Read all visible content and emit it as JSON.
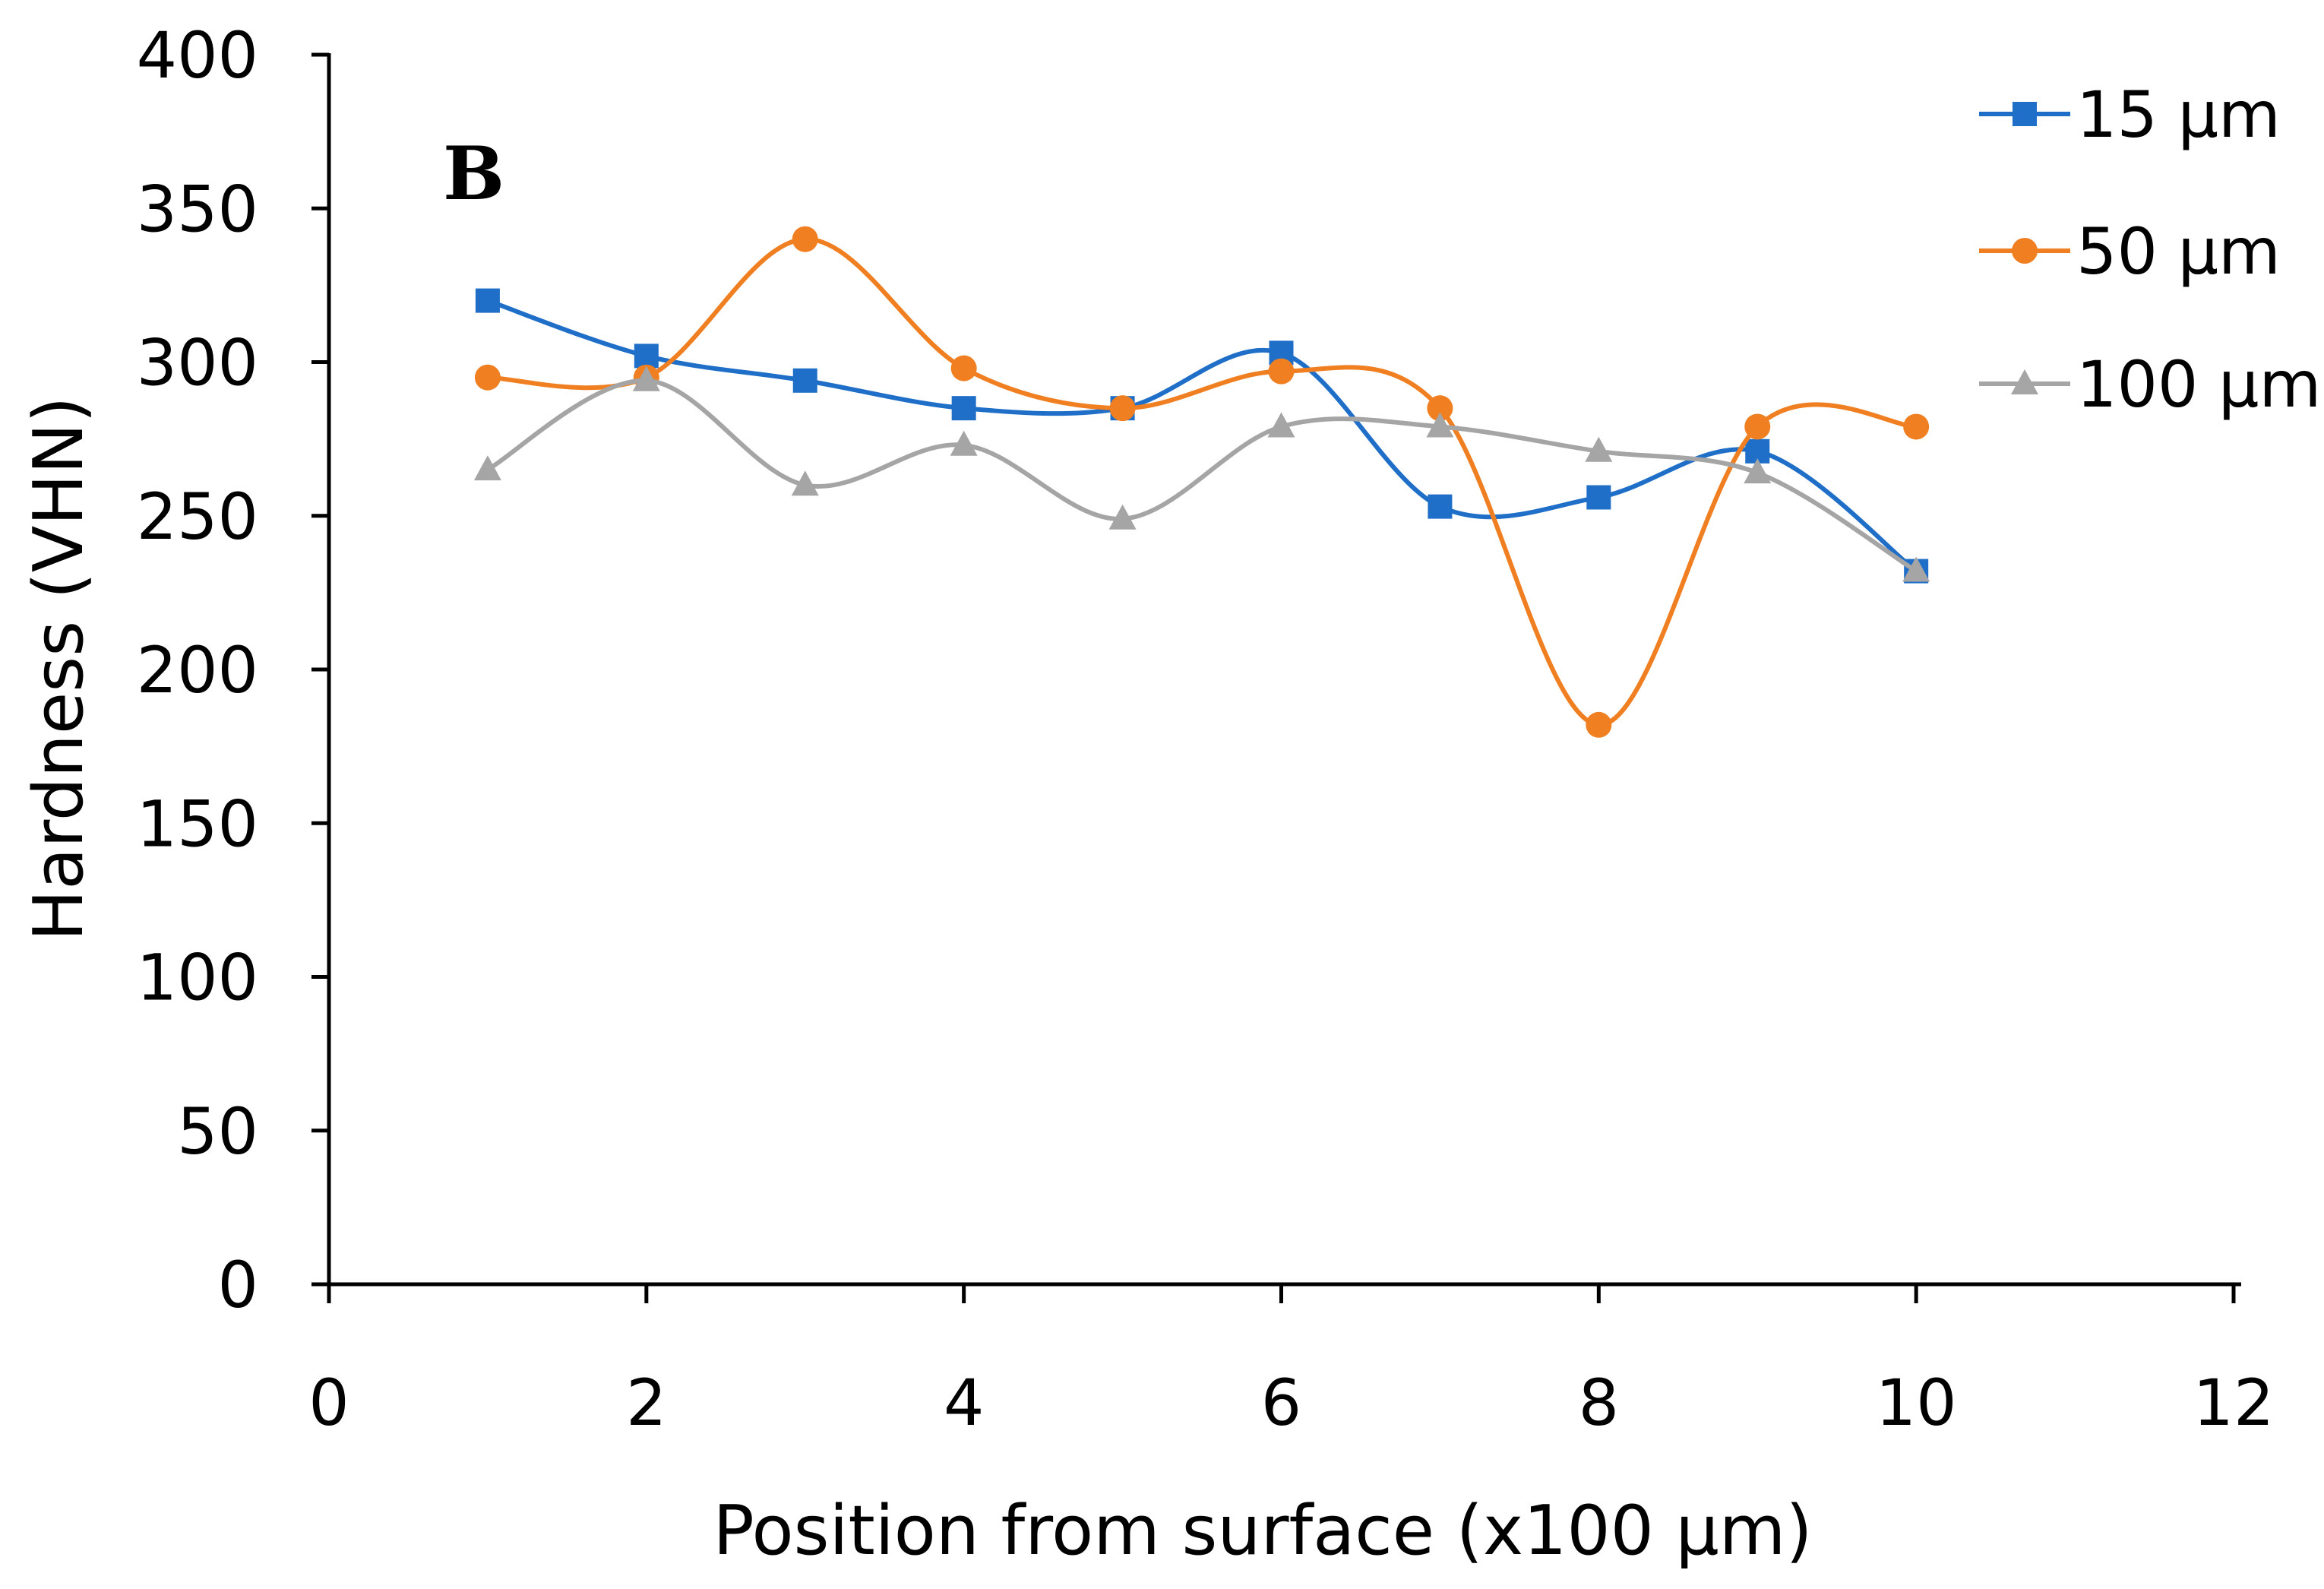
{
  "chart_data": {
    "type": "line",
    "panel_label": "B",
    "xlabel": "Position from surface (x100 µm)",
    "ylabel": "Hardness (VHN)",
    "xlim": [
      0,
      12
    ],
    "ylim": [
      0,
      400
    ],
    "xticks": [
      0,
      2,
      4,
      6,
      8,
      10,
      12
    ],
    "yticks": [
      0,
      50,
      100,
      150,
      200,
      250,
      300,
      350,
      400
    ],
    "grid": false,
    "legend_position": "top-right",
    "x": [
      1,
      2,
      3,
      4,
      5,
      6,
      7,
      8,
      9,
      10
    ],
    "series": [
      {
        "name": "15 µm",
        "color": "#1F6FC8",
        "marker": "square",
        "values": [
          320,
          302,
          294,
          285,
          285,
          303,
          253,
          256,
          271,
          232
        ]
      },
      {
        "name": "50 µm",
        "color": "#F07F22",
        "marker": "circle",
        "values": [
          295,
          295,
          340,
          298,
          285,
          297,
          285,
          182,
          279,
          279
        ]
      },
      {
        "name": "100 µm",
        "color": "#A5A5A5",
        "marker": "triangle",
        "values": [
          265,
          294,
          260,
          273,
          249,
          279,
          279,
          271,
          264,
          232
        ]
      }
    ]
  }
}
